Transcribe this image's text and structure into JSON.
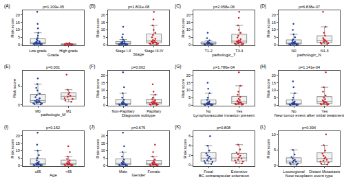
{
  "chart_data": [
    {
      "type": "box",
      "title": "(A)",
      "annotations": [
        "p=1.109e-05"
      ],
      "x_label": "Grade",
      "y_label": "Risk score",
      "categories": [
        "Low grade",
        "High grade"
      ],
      "colors": [
        "#1f3f9a",
        "#d11f26"
      ],
      "marker": "circle",
      "grid": false,
      "values": [
        [
          0.2,
          0.3,
          0.4,
          0.5,
          0.5,
          0.6,
          0.7,
          0.8,
          0.9,
          1.0,
          1.1,
          1.2,
          1.4,
          1.6,
          1.9,
          2.3,
          2.8,
          3.5,
          4.5,
          6,
          8,
          11,
          14,
          22
        ],
        [
          0.1,
          0.15,
          0.2,
          0.25,
          0.3,
          0.35,
          0.4,
          0.5,
          0.6,
          0.8,
          1.2
        ]
      ],
      "ylim": [
        -0.5,
        23
      ],
      "yticks": [
        0,
        5,
        10,
        15,
        20
      ]
    },
    {
      "type": "box",
      "title": "(B)",
      "annotations": [
        "p=1.801e-08"
      ],
      "x_label": "Stage",
      "y_label": "Risk score",
      "categories": [
        "Stage I-II",
        "Stage III-IV"
      ],
      "colors": [
        "#1f3f9a",
        "#d11f26"
      ],
      "marker": "circle",
      "grid": false,
      "values": [
        [
          0.1,
          0.2,
          0.3,
          0.35,
          0.4,
          0.5,
          0.55,
          0.6,
          0.7,
          0.8,
          0.9,
          1.0,
          1.2,
          1.5,
          1.9,
          2.5,
          3.5,
          5,
          7,
          12
        ],
        [
          0.3,
          0.5,
          0.7,
          0.9,
          1.1,
          1.3,
          1.5,
          1.7,
          2.0,
          2.3,
          2.7,
          3.2,
          4,
          5,
          6.5,
          8,
          10,
          13,
          17,
          22
        ]
      ],
      "ylim": [
        -0.5,
        23
      ],
      "yticks": [
        0,
        5,
        10,
        15,
        20
      ]
    },
    {
      "type": "box",
      "title": "(C)",
      "annotations": [
        "p=2.058e-06"
      ],
      "x_label": "pathologic_T",
      "y_label": "Risk score",
      "categories": [
        "T1-2",
        "T3-4"
      ],
      "colors": [
        "#1f3f9a",
        "#d11f26"
      ],
      "marker": "circle",
      "grid": false,
      "values": [
        [
          0.1,
          0.2,
          0.3,
          0.4,
          0.5,
          0.6,
          0.7,
          0.8,
          1.0,
          1.2,
          1.5,
          2,
          3,
          4.5,
          8
        ],
        [
          0.2,
          0.4,
          0.6,
          0.8,
          1.0,
          1.2,
          1.4,
          1.6,
          1.9,
          2.2,
          2.6,
          3,
          3.8,
          4.8,
          6,
          8,
          10,
          13,
          18,
          22
        ]
      ],
      "ylim": [
        -0.5,
        23
      ],
      "yticks": [
        0,
        5,
        10,
        15,
        20
      ]
    },
    {
      "type": "box",
      "title": "(D)",
      "annotations": [
        "p=6.838e-07"
      ],
      "x_label": "pathologic_N",
      "y_label": "Risk score",
      "categories": [
        "N0",
        "N1-3"
      ],
      "colors": [
        "#1f3f9a",
        "#d11f26"
      ],
      "marker": "circle",
      "grid": false,
      "values": [
        [
          0.1,
          0.2,
          0.3,
          0.4,
          0.5,
          0.6,
          0.7,
          0.8,
          0.9,
          1.1,
          1.3,
          1.6,
          2,
          2.6,
          3.5,
          5,
          7,
          10,
          14
        ],
        [
          0.5,
          0.8,
          1.1,
          1.4,
          1.7,
          2,
          2.4,
          2.9,
          3.5,
          4.5,
          6,
          8,
          12,
          22
        ]
      ],
      "ylim": [
        -0.5,
        23
      ],
      "yticks": [
        0,
        5,
        10,
        15,
        20
      ]
    },
    {
      "type": "box",
      "title": "(E)",
      "annotations": [
        "p=0.001"
      ],
      "x_label": "pathologic_M",
      "y_label": "Risk score",
      "categories": [
        "M0",
        "M1"
      ],
      "colors": [
        "#1f3f9a",
        "#d11f26"
      ],
      "marker": "circle",
      "grid": false,
      "values": [
        [
          0.1,
          0.2,
          0.3,
          0.4,
          0.5,
          0.6,
          0.7,
          0.8,
          0.9,
          1.0,
          1.2,
          1.4,
          1.7,
          2,
          2.5,
          3,
          3.8,
          4.5,
          5.5,
          7
        ],
        [
          0.8,
          1.2,
          1.5,
          1.8,
          2.1,
          2.4,
          2.8,
          3.2,
          4,
          8
        ]
      ],
      "ylim": [
        -0.3,
        9
      ],
      "yticks": [
        0,
        5
      ]
    },
    {
      "type": "box",
      "title": "(F)",
      "annotations": [
        "p=0.002"
      ],
      "x_label": "Diagnosis subtype",
      "y_label": "Risk score",
      "categories": [
        "Non-Papillary",
        "Papillary"
      ],
      "colors": [
        "#1f3f9a",
        "#d11f26"
      ],
      "marker": "circle",
      "grid": false,
      "values": [
        [
          0.1,
          0.2,
          0.3,
          0.4,
          0.5,
          0.6,
          0.7,
          0.9,
          1.1,
          1.4,
          1.8,
          2.5,
          3.5,
          5,
          8,
          12,
          22
        ],
        [
          0.2,
          0.35,
          0.5,
          0.65,
          0.8,
          0.95,
          1.1,
          1.3,
          1.5,
          1.8,
          2.1,
          2.6,
          3.2,
          4,
          5,
          7,
          9,
          14
        ]
      ],
      "ylim": [
        -0.5,
        23
      ],
      "yticks": [
        0,
        5,
        10,
        15,
        20
      ]
    },
    {
      "type": "box",
      "title": "(G)",
      "annotations": [
        "p=1.786e-04"
      ],
      "x_label": "Lymphovascular invasion present",
      "y_label": "Risk score",
      "categories": [
        "No",
        "Yes"
      ],
      "colors": [
        "#1f3f9a",
        "#d11f26"
      ],
      "marker": "circle",
      "grid": false,
      "values": [
        [
          0.1,
          0.2,
          0.3,
          0.4,
          0.5,
          0.6,
          0.7,
          0.8,
          1.0,
          1.2,
          1.5,
          1.9,
          2.5,
          3.5,
          5,
          8,
          11,
          15
        ],
        [
          0.3,
          0.5,
          0.7,
          0.9,
          1.1,
          1.3,
          1.6,
          1.9,
          2.3,
          2.8,
          3.4,
          4.2,
          5.5,
          7,
          9,
          13,
          22
        ]
      ],
      "ylim": [
        -0.5,
        23
      ],
      "yticks": [
        0,
        5,
        10,
        15,
        20
      ]
    },
    {
      "type": "box",
      "title": "(H)",
      "annotations": [
        "p=1.141e-04"
      ],
      "x_label": "New tumor event after initial treatment",
      "y_label": "Risk score",
      "categories": [
        "No",
        "Yes"
      ],
      "colors": [
        "#1f3f9a",
        "#d11f26"
      ],
      "marker": "circle",
      "grid": false,
      "values": [
        [
          0.1,
          0.2,
          0.3,
          0.4,
          0.5,
          0.6,
          0.7,
          0.8,
          1.0,
          1.2,
          1.5,
          1.9,
          2.5,
          3.5,
          5,
          8,
          12,
          16
        ],
        [
          0.3,
          0.5,
          0.7,
          0.9,
          1.2,
          1.5,
          1.8,
          2.2,
          2.7,
          3.3,
          4,
          5,
          6.5,
          9,
          12,
          22
        ]
      ],
      "ylim": [
        -0.5,
        23
      ],
      "yticks": [
        0,
        5,
        10,
        15,
        20
      ]
    },
    {
      "type": "box",
      "title": "(I)",
      "annotations": [
        "p=0.152"
      ],
      "x_label": "Age",
      "y_label": "Risk score",
      "categories": [
        "≤65",
        ">65"
      ],
      "colors": [
        "#1f3f9a",
        "#d11f26"
      ],
      "marker": "circle",
      "grid": false,
      "values": [
        [
          0.1,
          0.2,
          0.3,
          0.4,
          0.5,
          0.6,
          0.7,
          0.8,
          1.0,
          1.2,
          1.5,
          1.9,
          2.5,
          3.5,
          5,
          7,
          10,
          14,
          22
        ],
        [
          0.1,
          0.2,
          0.35,
          0.5,
          0.6,
          0.75,
          0.9,
          1.1,
          1.3,
          1.6,
          2,
          2.6,
          3.4,
          4.5,
          6,
          9,
          13
        ]
      ],
      "ylim": [
        -0.5,
        23
      ],
      "yticks": [
        0,
        5,
        10,
        15,
        20
      ]
    },
    {
      "type": "box",
      "title": "(J)",
      "annotations": [
        "p=0.675"
      ],
      "x_label": "Gender",
      "y_label": "Risk score",
      "categories": [
        "Male",
        "Female"
      ],
      "colors": [
        "#1f3f9a",
        "#d11f26"
      ],
      "marker": "circle",
      "grid": false,
      "values": [
        [
          0.1,
          0.2,
          0.3,
          0.45,
          0.6,
          0.75,
          0.9,
          1.1,
          1.4,
          1.8,
          2.3,
          3,
          4,
          6,
          9,
          13,
          22
        ],
        [
          0.1,
          0.2,
          0.3,
          0.45,
          0.6,
          0.75,
          0.9,
          1.1,
          1.4,
          1.8,
          2.3,
          3,
          4,
          6,
          9,
          14
        ]
      ],
      "ylim": [
        -0.5,
        23
      ],
      "yticks": [
        0,
        5,
        10,
        15,
        20
      ]
    },
    {
      "type": "box",
      "title": "(K)",
      "annotations": [
        "p=0.808"
      ],
      "x_label": "BC extracapsular extension",
      "y_label": "Risk score",
      "categories": [
        "Focal",
        "Extensive"
      ],
      "colors": [
        "#1f3f9a",
        "#d11f26"
      ],
      "marker": "circle",
      "grid": false,
      "values": [
        [
          0.2,
          0.4,
          0.6,
          0.8,
          1.0,
          1.2,
          1.4,
          1.7,
          2.0,
          2.4,
          3,
          4,
          6
        ],
        [
          0.3,
          0.5,
          0.7,
          0.9,
          1.1,
          1.3,
          1.6,
          1.9,
          2.2,
          2.6,
          3.2,
          4.2
        ]
      ],
      "ylim": [
        -0.3,
        7
      ],
      "yticks": [
        0,
        2,
        4,
        6
      ]
    },
    {
      "type": "box",
      "title": "(L)",
      "annotations": [
        "p=0.394"
      ],
      "x_label": "New neoplasm event type",
      "y_label": "Risk score",
      "categories": [
        "Locoregional",
        "Distant Metastasis"
      ],
      "colors": [
        "#1f3f9a",
        "#d11f26"
      ],
      "marker": "circle",
      "grid": false,
      "values": [
        [
          0.2,
          0.4,
          0.6,
          0.8,
          1.0,
          1.2,
          1.5,
          1.8,
          2.2,
          2.7,
          3.5,
          5
        ],
        [
          0.3,
          0.6,
          0.9,
          1.2,
          1.5,
          1.8,
          2.2,
          2.6,
          3.1,
          3.8,
          4.8,
          6.5,
          10
        ]
      ],
      "ylim": [
        -0.3,
        11
      ],
      "yticks": [
        0,
        5,
        10
      ]
    }
  ]
}
